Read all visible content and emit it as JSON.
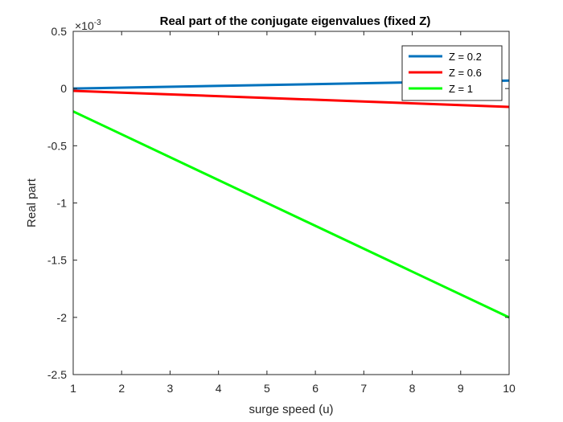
{
  "chart_data": {
    "type": "line",
    "title": "Real part of the conjugate eigenvalues (fixed Z)",
    "xlabel": "surge speed (u)",
    "ylabel": "Real part",
    "xlim": [
      1,
      10
    ],
    "ylim": [
      -2.5,
      0.5
    ],
    "x_ticks": [
      1,
      2,
      3,
      4,
      5,
      6,
      7,
      8,
      9,
      10
    ],
    "x_tick_labels": [
      "1",
      "2",
      "3",
      "4",
      "5",
      "6",
      "7",
      "8",
      "9",
      "10"
    ],
    "y_ticks": [
      0.5,
      0,
      -0.5,
      -1,
      -1.5,
      -2,
      -2.5
    ],
    "y_tick_labels": [
      "0.5",
      "0",
      "-0.5",
      "-1",
      "-1.5",
      "-2",
      "-2.5"
    ],
    "y_exponent_prefix": "×10",
    "y_exponent_power": "-3",
    "grid": false,
    "legend_position": "top-right",
    "series": [
      {
        "name": "Z = 0.2",
        "color": "#0072BD",
        "x": [
          1,
          10
        ],
        "y": [
          0.0,
          0.07
        ]
      },
      {
        "name": "Z = 0.6",
        "color": "#FF0000",
        "x": [
          1,
          10
        ],
        "y": [
          -0.02,
          -0.16
        ]
      },
      {
        "name": "Z = 1",
        "color": "#00FF00",
        "x": [
          1,
          10
        ],
        "y": [
          -0.2,
          -2.0
        ]
      }
    ]
  }
}
